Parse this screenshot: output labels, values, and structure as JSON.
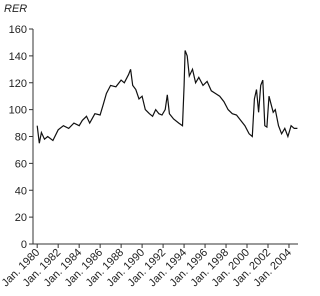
{
  "chart_data": {
    "type": "line",
    "y_label": "RER",
    "x": [
      1980.0,
      1980.2,
      1980.4,
      1980.7,
      1981.0,
      1981.5,
      1982.0,
      1982.5,
      1983.0,
      1983.5,
      1984.0,
      1984.3,
      1984.7,
      1985.0,
      1985.5,
      1986.0,
      1986.3,
      1986.6,
      1987.0,
      1987.5,
      1988.0,
      1988.3,
      1988.7,
      1988.9,
      1989.1,
      1989.4,
      1989.7,
      1990.0,
      1990.3,
      1990.7,
      1991.0,
      1991.3,
      1991.6,
      1991.9,
      1992.2,
      1992.4,
      1992.6,
      1993.0,
      1993.5,
      1993.85,
      1994.0,
      1994.1,
      1994.3,
      1994.5,
      1994.8,
      1995.1,
      1995.4,
      1995.8,
      1996.2,
      1996.6,
      1997.0,
      1997.4,
      1997.8,
      1998.2,
      1998.6,
      1999.0,
      1999.4,
      1999.8,
      2000.2,
      2000.5,
      2000.7,
      2000.9,
      2001.1,
      2001.3,
      2001.5,
      2001.7,
      2001.9,
      2002.1,
      2002.3,
      2002.5,
      2002.7,
      2003.0,
      2003.3,
      2003.6,
      2003.9,
      2004.2,
      2004.5,
      2004.8
    ],
    "series": [
      {
        "name": "RER",
        "color": "#111111",
        "values": [
          88,
          75,
          83,
          78,
          80,
          77,
          85,
          88,
          86,
          90,
          88,
          92,
          95,
          90,
          97,
          96,
          104,
          112,
          118,
          117,
          122,
          120,
          126,
          130,
          118,
          115,
          108,
          110,
          100,
          97,
          95,
          100,
          97,
          96,
          100,
          111,
          97,
          93,
          90,
          88,
          118,
          144,
          140,
          125,
          130,
          120,
          124,
          118,
          121,
          114,
          112,
          110,
          106,
          100,
          97,
          96,
          92,
          88,
          82,
          80,
          108,
          115,
          98,
          118,
          122,
          88,
          87,
          110,
          104,
          98,
          100,
          88,
          82,
          86,
          80,
          88,
          86,
          86
        ]
      }
    ],
    "xlim": [
      1979.6,
      2004.86
    ],
    "ylim": [
      0,
      160
    ],
    "yticks": [
      0,
      20,
      40,
      60,
      80,
      100,
      120,
      140,
      160
    ],
    "xticks": [
      {
        "value": 1980,
        "label": "Jan. 1980"
      },
      {
        "value": 1982,
        "label": "Jan. 1982"
      },
      {
        "value": 1984,
        "label": "Jan. 1984"
      },
      {
        "value": 1986,
        "label": "Jan. 1986"
      },
      {
        "value": 1988,
        "label": "Jan. 1988"
      },
      {
        "value": 1990,
        "label": "Jan. 1990"
      },
      {
        "value": 1992,
        "label": "Jan. 1992"
      },
      {
        "value": 1994,
        "label": "Jan. 1994"
      },
      {
        "value": 1996,
        "label": "Jan. 1996"
      },
      {
        "value": 1998,
        "label": "Jan. 1998"
      },
      {
        "value": 2000,
        "label": "Jan. 2000"
      },
      {
        "value": 2002,
        "label": "Jan. 2002"
      },
      {
        "value": 2004,
        "label": "Jan. 2004"
      }
    ],
    "grid": false
  }
}
